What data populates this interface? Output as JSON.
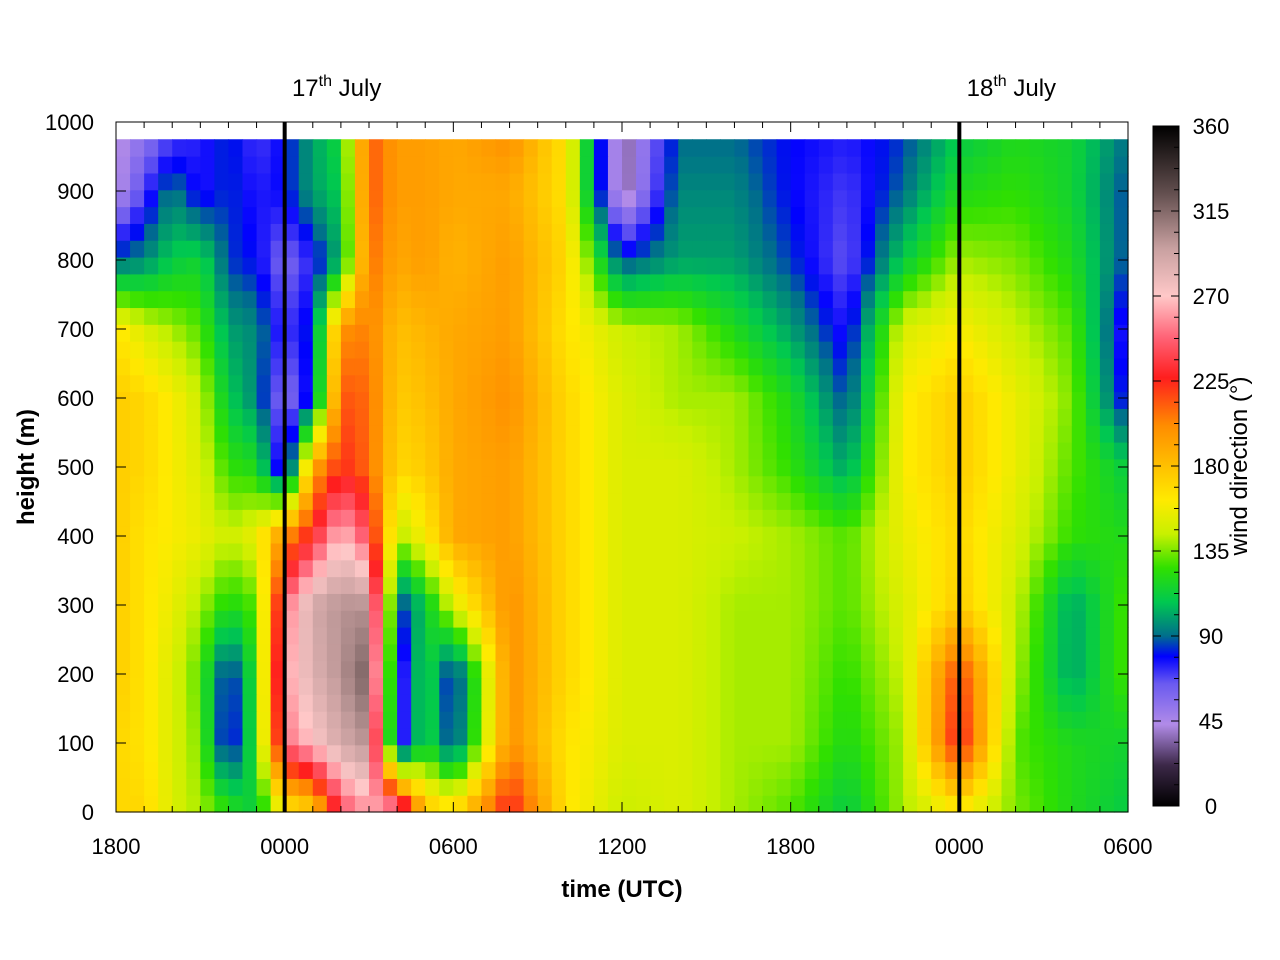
{
  "chart_data": {
    "type": "heatmap",
    "title": "",
    "xlabel": "time (UTC)",
    "ylabel": "height (m)",
    "colorbar_label": "wind direction (°)",
    "x_tick_labels": [
      "1800",
      "0000",
      "0600",
      "1200",
      "1800",
      "0000",
      "0600"
    ],
    "x_range_hours": [
      0,
      36
    ],
    "y_ticks": [
      0,
      100,
      200,
      300,
      400,
      500,
      600,
      700,
      800,
      900,
      1000
    ],
    "ylim": [
      0,
      1000
    ],
    "colorbar_ticks": [
      0,
      45,
      90,
      135,
      180,
      225,
      270,
      315,
      360
    ],
    "colorbar_range": [
      0,
      360
    ],
    "date_markers": [
      {
        "hour": 6,
        "day": "17",
        "sup": "th",
        "month": "July"
      },
      {
        "hour": 30,
        "day": "18",
        "sup": "th",
        "month": "July"
      }
    ],
    "grid": false,
    "heights_m": [
      0,
      100,
      200,
      300,
      400,
      500,
      600,
      700,
      800,
      900,
      975
    ],
    "times_h": [
      0,
      1,
      2,
      3,
      4,
      5,
      6,
      7,
      8,
      9,
      10,
      11,
      12,
      14,
      16,
      18,
      20,
      22,
      24,
      26,
      28,
      30,
      32,
      34,
      36
    ],
    "direction_deg": [
      [
        170,
        170,
        150,
        140,
        125,
        110,
        160,
        170,
        240,
        260,
        270,
        180,
        170,
        230,
        165,
        145,
        150,
        140,
        130,
        110,
        140,
        160,
        135,
        120,
        110
      ],
      [
        170,
        165,
        150,
        135,
        70,
        125,
        250,
        270,
        290,
        300,
        60,
        120,
        80,
        200,
        165,
        150,
        150,
        140,
        140,
        120,
        140,
        230,
        130,
        120,
        115
      ],
      [
        175,
        165,
        150,
        130,
        75,
        125,
        260,
        285,
        300,
        320,
        60,
        120,
        75,
        200,
        170,
        150,
        150,
        140,
        140,
        125,
        145,
        220,
        140,
        100,
        130
      ],
      [
        175,
        165,
        155,
        140,
        120,
        130,
        250,
        290,
        300,
        300,
        80,
        110,
        150,
        200,
        170,
        150,
        150,
        140,
        140,
        130,
        150,
        175,
        145,
        100,
        130
      ],
      [
        175,
        165,
        160,
        155,
        145,
        155,
        200,
        230,
        270,
        240,
        140,
        160,
        190,
        195,
        170,
        150,
        150,
        145,
        140,
        130,
        155,
        170,
        150,
        125,
        120
      ],
      [
        175,
        170,
        160,
        150,
        125,
        120,
        65,
        190,
        225,
        210,
        170,
        175,
        190,
        195,
        170,
        150,
        150,
        140,
        125,
        100,
        160,
        175,
        155,
        130,
        110
      ],
      [
        175,
        170,
        160,
        145,
        110,
        95,
        55,
        85,
        215,
        210,
        175,
        180,
        190,
        200,
        170,
        150,
        140,
        140,
        120,
        85,
        160,
        175,
        155,
        135,
        75
      ],
      [
        165,
        150,
        140,
        130,
        100,
        95,
        70,
        85,
        200,
        205,
        180,
        185,
        190,
        195,
        165,
        145,
        140,
        120,
        100,
        75,
        150,
        160,
        145,
        130,
        70
      ],
      [
        90,
        95,
        110,
        115,
        85,
        80,
        60,
        75,
        105,
        210,
        190,
        195,
        185,
        195,
        170,
        85,
        100,
        100,
        85,
        65,
        110,
        140,
        135,
        120,
        85
      ],
      [
        40,
        70,
        95,
        75,
        85,
        75,
        80,
        100,
        110,
        215,
        195,
        195,
        190,
        190,
        165,
        30,
        95,
        95,
        80,
        70,
        90,
        120,
        125,
        115,
        85
      ],
      [
        40,
        55,
        70,
        75,
        85,
        70,
        80,
        100,
        115,
        215,
        195,
        195,
        190,
        200,
        165,
        30,
        90,
        90,
        80,
        75,
        85,
        110,
        120,
        115,
        90
      ]
    ]
  }
}
